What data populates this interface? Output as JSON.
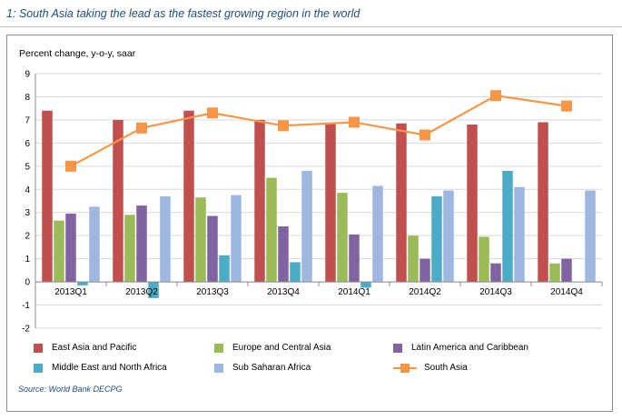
{
  "figure_title": "1: South Asia taking the lead as the fastest growing region in the world",
  "source": "Source: World Bank DECPG",
  "chart_data": {
    "type": "bar",
    "ylabel": "Percent change, y-o-y, saar",
    "ylim": [
      -2,
      9
    ],
    "yticks": [
      "-2",
      "-1",
      "0",
      "1",
      "2",
      "3",
      "4",
      "5",
      "6",
      "7",
      "8",
      "9"
    ],
    "categories": [
      "2013Q1",
      "2013Q2",
      "2013Q3",
      "2013Q4",
      "2014Q1",
      "2014Q2",
      "2014Q3",
      "2014Q4"
    ],
    "series": [
      {
        "name": "East Asia and Pacific",
        "kind": "bar",
        "color": "#c0504d",
        "values": [
          7.4,
          7.0,
          7.4,
          7.0,
          6.85,
          6.85,
          6.8,
          6.9
        ]
      },
      {
        "name": "Europe and Central Asia",
        "kind": "bar",
        "color": "#9bbb59",
        "values": [
          2.65,
          2.9,
          3.65,
          4.5,
          3.85,
          2.0,
          1.95,
          0.8
        ]
      },
      {
        "name": "Latin America and Caribbean",
        "kind": "bar",
        "color": "#8064a2",
        "values": [
          2.95,
          3.3,
          2.85,
          2.4,
          2.05,
          1.0,
          0.8,
          1.0
        ]
      },
      {
        "name": "Middle East and North Africa",
        "kind": "bar",
        "color": "#4bacc6",
        "values": [
          -0.15,
          -0.7,
          1.15,
          0.85,
          -0.25,
          3.7,
          4.8,
          null
        ]
      },
      {
        "name": "Sub Saharan Africa",
        "kind": "bar",
        "color": "#9db7e0",
        "values": [
          3.25,
          3.7,
          3.75,
          4.8,
          4.15,
          3.95,
          4.1,
          3.95
        ]
      },
      {
        "name": "South Asia",
        "kind": "line",
        "color": "#f79646",
        "marker": "square",
        "values": [
          5.0,
          6.65,
          7.3,
          6.75,
          6.9,
          6.35,
          8.05,
          7.6
        ]
      }
    ],
    "legend_position": "bottom"
  }
}
